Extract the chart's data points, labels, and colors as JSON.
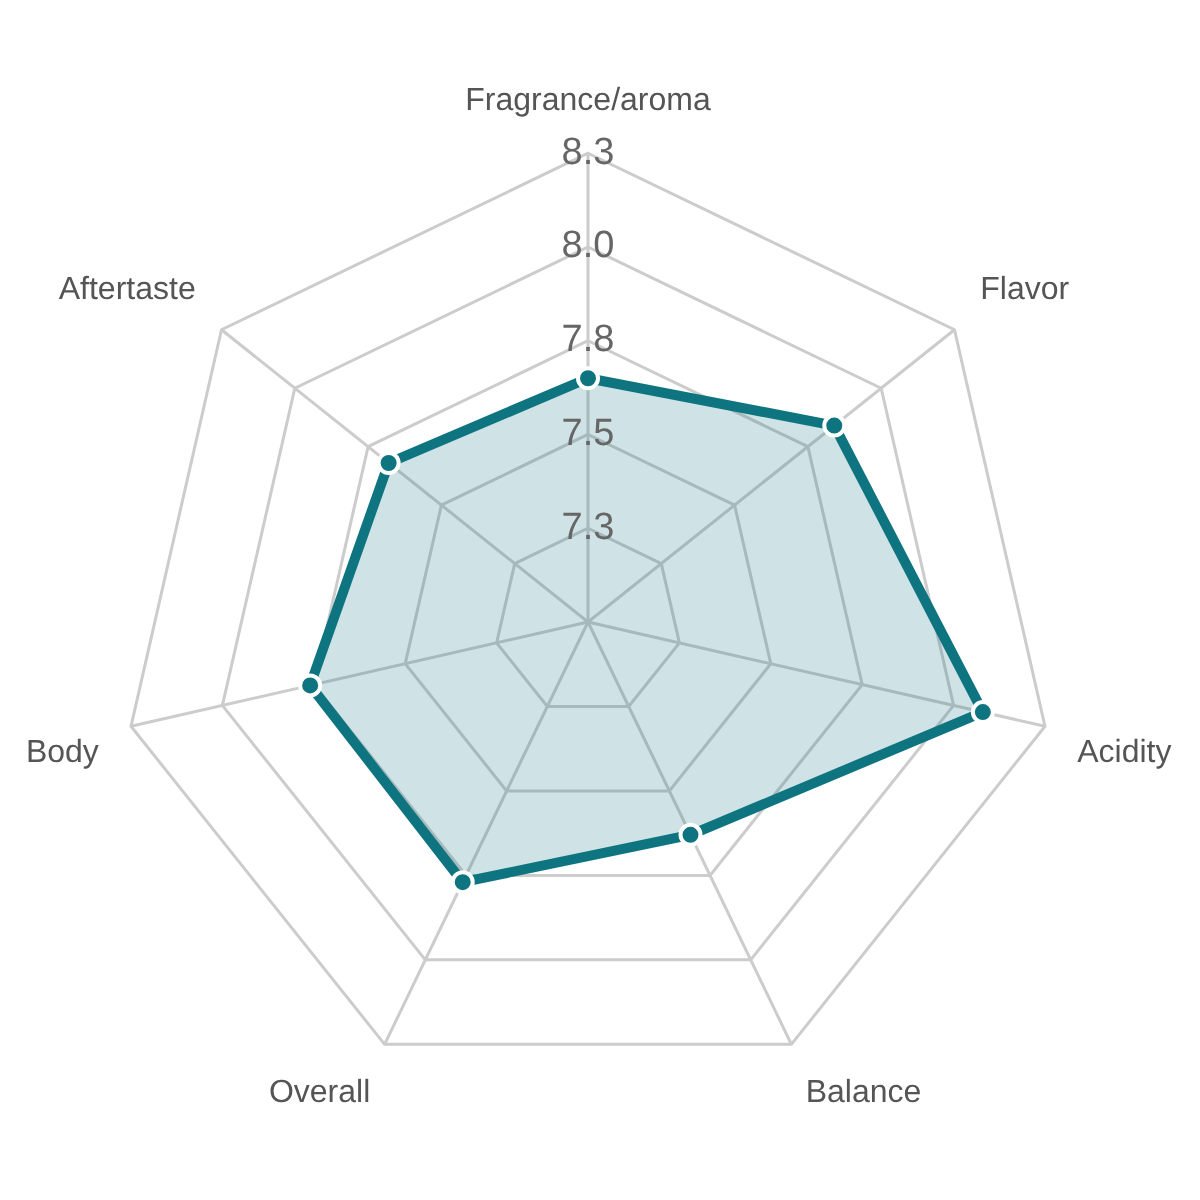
{
  "chart_data": {
    "type": "radar",
    "categories": [
      "Fragrance/aroma",
      "Flavor",
      "Acidity",
      "Balance",
      "Overall",
      "Body",
      "Aftertaste"
    ],
    "series": [
      {
        "color": "#0e7480",
        "values": [
          7.65,
          7.84,
          8.08,
          7.63,
          7.77,
          7.76,
          7.68
        ]
      }
    ],
    "ylim": [
      7.0,
      8.25
    ],
    "yticks": [
      {
        "value": 7.25,
        "label": "7.3"
      },
      7.5,
      {
        "value": 7.75,
        "label": "7.8"
      },
      {
        "value": 8.0,
        "label": "8.0"
      },
      {
        "value": 8.25,
        "label": "8.3"
      }
    ],
    "grid": true,
    "legend": false,
    "marker": "circle"
  }
}
